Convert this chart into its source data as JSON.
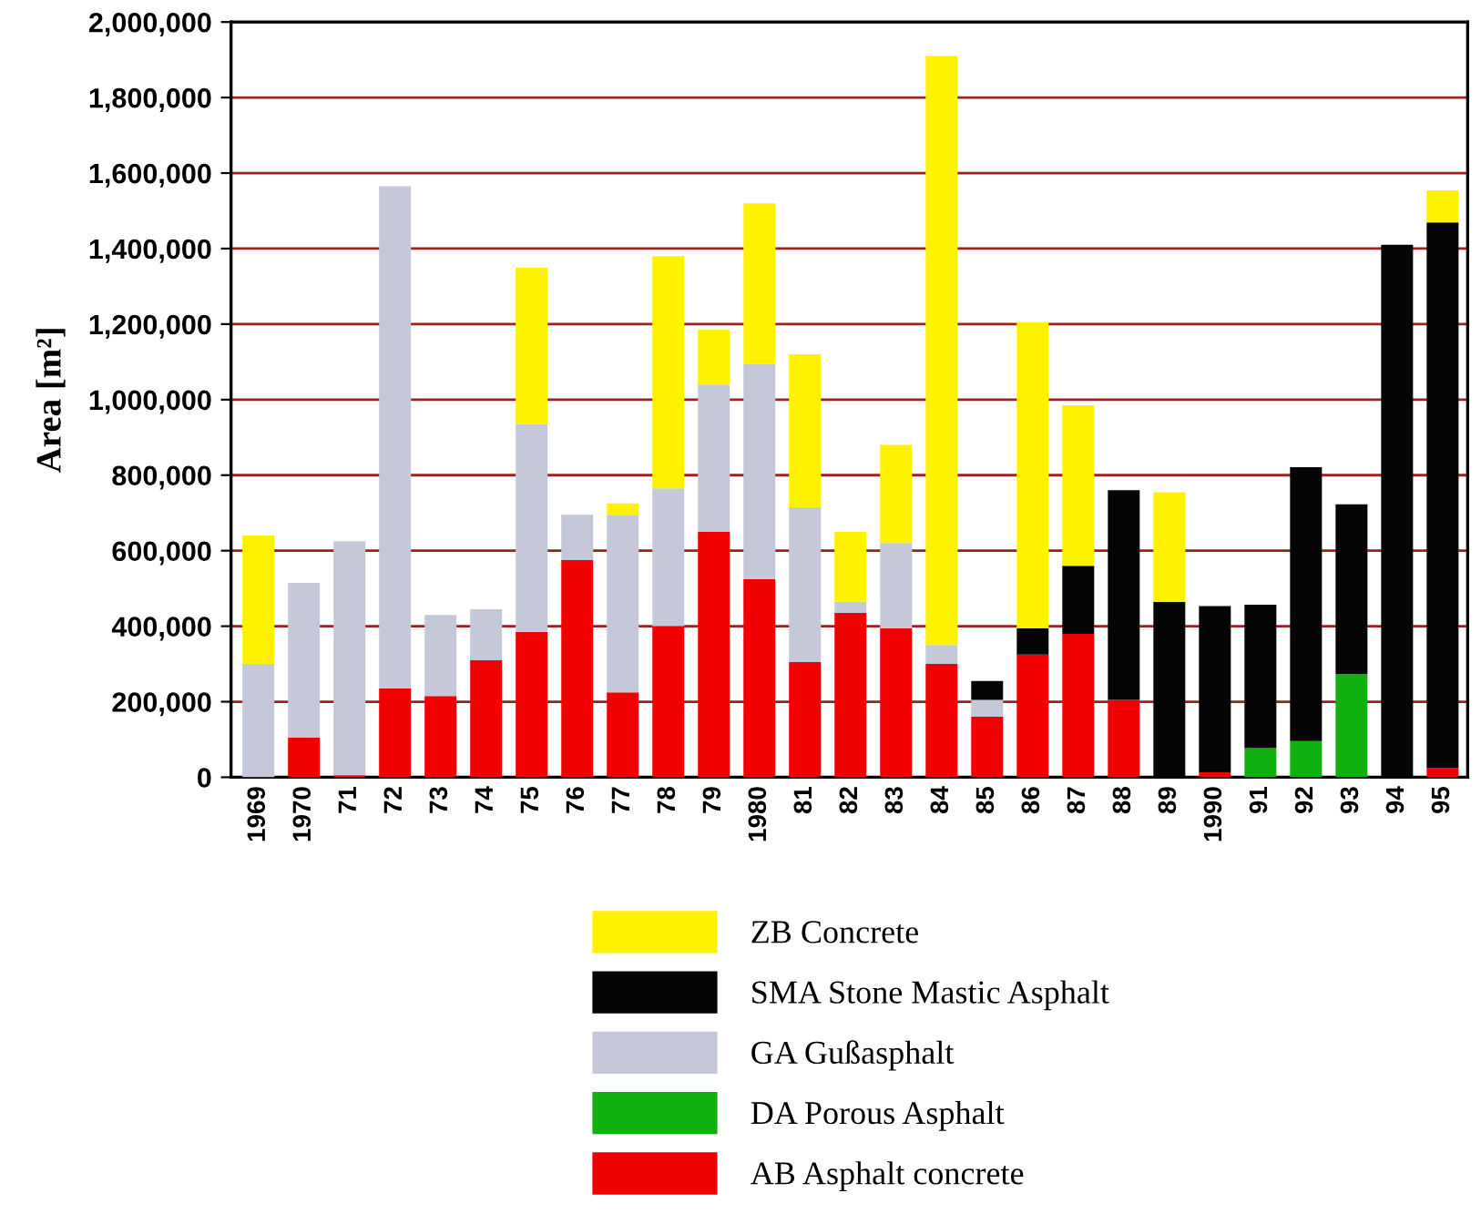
{
  "chart_data": {
    "type": "bar",
    "stacked": true,
    "ylabel": "Area [m²]",
    "categories": [
      "1969",
      "1970",
      "71",
      "72",
      "73",
      "74",
      "75",
      "76",
      "77",
      "78",
      "79",
      "1980",
      "81",
      "82",
      "83",
      "84",
      "85",
      "86",
      "87",
      "88",
      "89",
      "1990",
      "91",
      "92",
      "93",
      "94",
      "95"
    ],
    "series": [
      {
        "name": "AB Asphalt concrete",
        "color": "#f00000",
        "values": [
          0,
          105000,
          5000,
          235000,
          215000,
          310000,
          385000,
          575000,
          225000,
          400000,
          650000,
          525000,
          305000,
          435000,
          395000,
          300000,
          160000,
          325000,
          380000,
          205000,
          0,
          13000,
          0,
          0,
          0,
          0,
          24000
        ]
      },
      {
        "name": "DA Porous Asphalt",
        "color": "#10b010",
        "values": [
          0,
          0,
          0,
          0,
          0,
          0,
          0,
          0,
          0,
          0,
          0,
          0,
          0,
          0,
          0,
          0,
          0,
          0,
          0,
          0,
          0,
          0,
          77000,
          96000,
          273000,
          0,
          0
        ]
      },
      {
        "name": "GA Gußasphalt",
        "color": "#c4c8d8",
        "values": [
          300000,
          410000,
          620000,
          1330000,
          215000,
          135000,
          550000,
          120000,
          470000,
          365000,
          390000,
          570000,
          410000,
          30000,
          225000,
          50000,
          45000,
          0,
          0,
          0,
          0,
          0,
          0,
          0,
          0,
          0,
          0
        ]
      },
      {
        "name": "SMA Stone Mastic Asphalt",
        "color": "#050505",
        "values": [
          0,
          0,
          0,
          0,
          0,
          0,
          0,
          0,
          0,
          0,
          0,
          0,
          0,
          0,
          0,
          0,
          50000,
          70000,
          180000,
          555000,
          465000,
          440000,
          380000,
          725000,
          450000,
          1410000,
          1445000
        ]
      },
      {
        "name": "ZB Concrete",
        "color": "#fff200",
        "values": [
          340000,
          0,
          0,
          0,
          0,
          0,
          415000,
          0,
          30000,
          615000,
          145000,
          425000,
          405000,
          185000,
          260000,
          1560000,
          0,
          810000,
          425000,
          0,
          290000,
          0,
          0,
          0,
          0,
          0,
          85000
        ]
      }
    ],
    "ylim": [
      0,
      2000000
    ],
    "yticks": [
      {
        "value": 0,
        "label": "0"
      },
      {
        "value": 200000,
        "label": "200,000"
      },
      {
        "value": 400000,
        "label": "400,000"
      },
      {
        "value": 600000,
        "label": "600,000"
      },
      {
        "value": 800000,
        "label": "800,000"
      },
      {
        "value": 1000000,
        "label": "1,000,000"
      },
      {
        "value": 1200000,
        "label": "1,200,000"
      },
      {
        "value": 1400000,
        "label": "1,400,000"
      },
      {
        "value": 1600000,
        "label": "1,600,000"
      },
      {
        "value": 1800000,
        "label": "1,800,000"
      },
      {
        "value": 2000000,
        "label": "2,000,000"
      }
    ],
    "grid": "y",
    "legend": "bottom"
  }
}
